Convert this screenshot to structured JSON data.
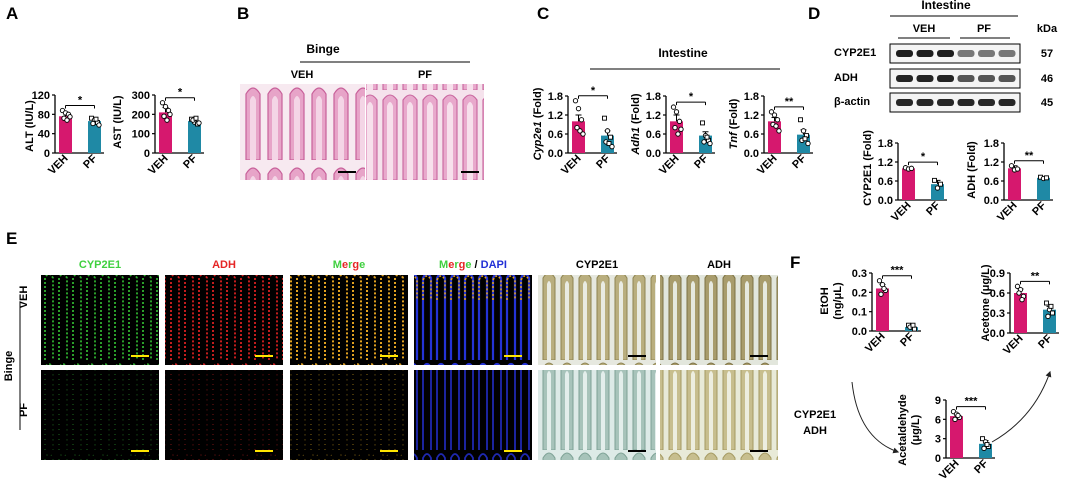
{
  "colors": {
    "veh": "#D6186E",
    "pf": "#1F89A5",
    "mic_cyp": "#3FD03F",
    "mic_adh": "#E52424",
    "mic_dapi": "#2230D6"
  },
  "panels": {
    "a": "A",
    "b": "B",
    "c": "C",
    "d": "D",
    "e": "E",
    "f": "F"
  },
  "panel_b": {
    "title": "Binge",
    "veh": "VEH",
    "pf": "PF"
  },
  "panel_c": {
    "header": "Intestine"
  },
  "panel_d": {
    "header": "Intestine",
    "kda_label": "kDa",
    "group_veh": "VEH",
    "group_pf": "PF",
    "rows": [
      {
        "label": "CYP2E1",
        "kda": "57"
      },
      {
        "label": "ADH",
        "kda": "46"
      },
      {
        "label": "β-actin",
        "kda": "45"
      }
    ]
  },
  "panel_e": {
    "cols": [
      {
        "text": "CYP2E1",
        "color": "#3FD03F"
      },
      {
        "text": "ADH",
        "color": "#E52424"
      },
      {
        "text": "Merge",
        "color": "multi"
      },
      {
        "text": "Merge / DAPI",
        "color": "multi"
      },
      {
        "text": "CYP2E1",
        "color": "#000000"
      },
      {
        "text": "ADH",
        "color": "#000000"
      }
    ],
    "merge_letters": [
      "M",
      "e",
      "r",
      "g",
      "e"
    ],
    "merge_colors": [
      "#3FD03F",
      "#E52424",
      "#3FD03F",
      "#E52424",
      "#3FD03F"
    ],
    "dapi": "DAPI",
    "slash": "/",
    "row_veh": "VEH",
    "row_pf": "PF",
    "group": "Binge"
  },
  "panel_f": {
    "enzyme1": "CYP2E1",
    "enzyme2": "ADH"
  },
  "chart_data": [
    {
      "id": "alt",
      "type": "bar",
      "panel": "A",
      "ylabel": "ALT (IU/L)",
      "ylim": [
        0,
        120
      ],
      "yticks": [
        "0",
        "40",
        "80",
        "120"
      ],
      "categories": [
        "VEH",
        "PF"
      ],
      "values": [
        76,
        66
      ],
      "errors": [
        8,
        5
      ],
      "points": [
        [
          88,
          83,
          80,
          72,
          68,
          75
        ],
        [
          72,
          68,
          63,
          61,
          70,
          58
        ]
      ],
      "sig": "*"
    },
    {
      "id": "ast",
      "type": "bar",
      "panel": "A",
      "ylabel": "AST (IU/L)",
      "ylim": [
        0,
        300
      ],
      "yticks": [
        "0",
        "100",
        "200",
        "300"
      ],
      "categories": [
        "VEH",
        "PF"
      ],
      "values": [
        210,
        165
      ],
      "errors": [
        25,
        12
      ],
      "points": [
        [
          260,
          240,
          220,
          190,
          170,
          200
        ],
        [
          175,
          160,
          150,
          170,
          180,
          155
        ]
      ],
      "sig": "*"
    },
    {
      "id": "cyp2e1",
      "type": "bar",
      "panel": "C",
      "ylabel": "Cyp2e1 (Fold)",
      "ylabel_italic": "Cyp2e1",
      "ylabel_rest": " (Fold)",
      "ylim": [
        0,
        1.8
      ],
      "yticks": [
        "0.0",
        "0.6",
        "1.2",
        "1.8"
      ],
      "categories": [
        "VEH",
        "PF"
      ],
      "values": [
        1.0,
        0.55
      ],
      "errors": [
        0.2,
        0.15
      ],
      "points": [
        [
          1.65,
          1.4,
          1.05,
          0.8,
          0.7,
          0.6
        ],
        [
          1.1,
          0.7,
          0.5,
          0.35,
          0.3,
          0.2
        ]
      ],
      "sig": "*"
    },
    {
      "id": "adh1",
      "type": "bar",
      "panel": "C",
      "ylabel": "Adh1 (Fold)",
      "ylabel_italic": "Adh1",
      "ylabel_rest": " (Fold)",
      "ylim": [
        0,
        1.8
      ],
      "yticks": [
        "0.0",
        "0.6",
        "1.2",
        "1.8"
      ],
      "categories": [
        "VEH",
        "PF"
      ],
      "values": [
        1.0,
        0.55
      ],
      "errors": [
        0.2,
        0.12
      ],
      "points": [
        [
          1.45,
          1.3,
          1.0,
          0.8,
          0.6,
          0.75
        ],
        [
          0.95,
          0.55,
          0.4,
          0.35,
          0.5,
          0.3
        ]
      ],
      "sig": "*"
    },
    {
      "id": "tnf",
      "type": "bar",
      "panel": "C",
      "ylabel": "Tnf (Fold)",
      "ylabel_italic": "Tnf",
      "ylabel_rest": " (Fold)",
      "ylim": [
        0,
        1.8
      ],
      "yticks": [
        "0.0",
        "0.6",
        "1.2",
        "1.8"
      ],
      "categories": [
        "VEH",
        "PF"
      ],
      "values": [
        1.0,
        0.58
      ],
      "errors": [
        0.12,
        0.15
      ],
      "points": [
        [
          1.3,
          1.2,
          1.05,
          0.9,
          0.85,
          0.7
        ],
        [
          1.05,
          0.7,
          0.55,
          0.4,
          0.45,
          0.3
        ]
      ],
      "sig": "**"
    },
    {
      "id": "cyp2e1_prot",
      "type": "bar",
      "panel": "D",
      "ylabel": "CYP2E1 (Fold)",
      "ylim": [
        0,
        1.8
      ],
      "yticks": [
        "0.0",
        "0.6",
        "1.2",
        "1.8"
      ],
      "categories": [
        "VEH",
        "PF"
      ],
      "values": [
        1.0,
        0.5
      ],
      "errors": [
        0.04,
        0.12
      ],
      "points": [
        [
          1.02,
          0.98,
          1.0
        ],
        [
          0.62,
          0.38,
          0.5
        ]
      ],
      "sig": "*"
    },
    {
      "id": "adh_prot",
      "type": "bar",
      "panel": "D",
      "ylabel": "ADH (Fold)",
      "ylim": [
        0,
        1.8
      ],
      "yticks": [
        "0.0",
        "0.6",
        "1.2",
        "1.8"
      ],
      "categories": [
        "VEH",
        "PF"
      ],
      "values": [
        1.0,
        0.7
      ],
      "errors": [
        0.08,
        0.03
      ],
      "points": [
        [
          1.08,
          0.95,
          0.98
        ],
        [
          0.72,
          0.68,
          0.7
        ]
      ],
      "sig": "**"
    },
    {
      "id": "etoh",
      "type": "bar",
      "panel": "F",
      "ylabel": "EtOH (ng/μL)",
      "ylabel_lines": [
        "EtOH",
        "(ng/μL)"
      ],
      "ylim": [
        0,
        0.3
      ],
      "yticks": [
        "0.0",
        "0.1",
        "0.2",
        "0.3"
      ],
      "categories": [
        "VEH",
        "PF"
      ],
      "values": [
        0.22,
        0.02
      ],
      "errors": [
        0.02,
        0.01
      ],
      "points": [
        [
          0.26,
          0.24,
          0.21,
          0.19,
          0.22
        ],
        [
          0.03,
          0.02,
          0.01,
          0.02,
          0.03
        ]
      ],
      "sig": "***"
    },
    {
      "id": "acetone",
      "type": "bar",
      "panel": "F",
      "ylabel": "Acetone (μg/L)",
      "ylim": [
        0,
        0.9
      ],
      "yticks": [
        "0.0",
        "0.3",
        "0.6",
        "0.9"
      ],
      "categories": [
        "VEH",
        "PF"
      ],
      "values": [
        0.6,
        0.35
      ],
      "errors": [
        0.06,
        0.05
      ],
      "points": [
        [
          0.7,
          0.65,
          0.55,
          0.6,
          0.5
        ],
        [
          0.45,
          0.35,
          0.3,
          0.25,
          0.4
        ]
      ],
      "sig": "**"
    },
    {
      "id": "acetaldehyde",
      "type": "bar",
      "panel": "F",
      "ylabel": "Acetaldehyde (μg/L)",
      "ylabel_lines": [
        "Acetaldehyde",
        "(μg/L)"
      ],
      "ylim": [
        0,
        9
      ],
      "yticks": [
        "0",
        "3",
        "6",
        "9"
      ],
      "categories": [
        "VEH",
        "PF"
      ],
      "values": [
        6.5,
        2.2
      ],
      "errors": [
        0.4,
        0.5
      ],
      "points": [
        [
          7.2,
          6.8,
          6.3,
          6.0,
          6.6
        ],
        [
          3.0,
          2.5,
          1.8,
          1.5,
          2.1
        ]
      ],
      "sig": "***"
    }
  ]
}
